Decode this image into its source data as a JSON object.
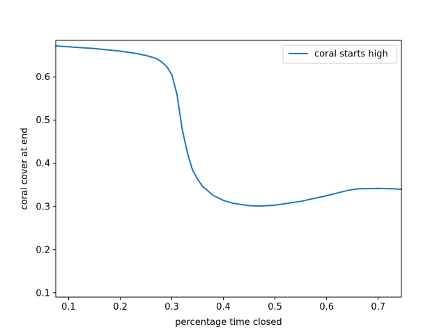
{
  "chart_data": {
    "type": "line",
    "title": "",
    "xlabel": "percentage time closed",
    "ylabel": "coral cover at end",
    "xlim": [
      0.075,
      0.745
    ],
    "ylim": [
      0.09,
      0.685
    ],
    "xticks": [
      "0.1",
      "0.2",
      "0.3",
      "0.4",
      "0.5",
      "0.6",
      "0.7"
    ],
    "yticks": [
      "0.1",
      "0.2",
      "0.3",
      "0.4",
      "0.5",
      "0.6"
    ],
    "grid": false,
    "legend_position": "upper right",
    "colors": {
      "series": "#1f77b4",
      "axes": "#000000",
      "background": "#ffffff"
    },
    "series": [
      {
        "name": "coral starts high",
        "x": [
          0.075,
          0.1,
          0.15,
          0.2,
          0.23,
          0.25,
          0.27,
          0.28,
          0.29,
          0.3,
          0.31,
          0.32,
          0.33,
          0.34,
          0.35,
          0.36,
          0.38,
          0.4,
          0.42,
          0.45,
          0.47,
          0.5,
          0.55,
          0.6,
          0.64,
          0.66,
          0.7,
          0.73,
          0.745
        ],
        "y": [
          0.672,
          0.67,
          0.666,
          0.66,
          0.655,
          0.65,
          0.643,
          0.635,
          0.625,
          0.605,
          0.56,
          0.48,
          0.425,
          0.385,
          0.363,
          0.346,
          0.326,
          0.314,
          0.307,
          0.302,
          0.301,
          0.303,
          0.312,
          0.325,
          0.337,
          0.341,
          0.342,
          0.341,
          0.34
        ]
      }
    ]
  }
}
